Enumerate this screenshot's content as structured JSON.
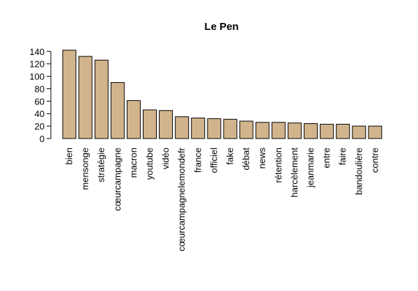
{
  "colors": {
    "bar_fill": "#d2b48c",
    "bar_stroke": "#000000",
    "background": "#ffffff"
  },
  "chart_data": {
    "type": "bar",
    "title": "Le Pen",
    "xlabel": "",
    "ylabel": "",
    "ylim": [
      0,
      145
    ],
    "yticks": [
      0,
      20,
      40,
      60,
      80,
      100,
      120,
      140
    ],
    "grid": false,
    "legend": "none",
    "categories": [
      "bien",
      "mensonge",
      "stratégie",
      "cœurcampagne",
      "macron",
      "youtube",
      "vidéo",
      "cœurcampagnelemondefr",
      "france",
      "officiel",
      "fake",
      "débat",
      "news",
      "rétention",
      "harcèlement",
      "jeanmarie",
      "entre",
      "faire",
      "bandoulière",
      "contre"
    ],
    "values": [
      142,
      132,
      126,
      90,
      61,
      46,
      45,
      35,
      33,
      32,
      31,
      28,
      26,
      26,
      25,
      24,
      23,
      23,
      20,
      20
    ]
  }
}
